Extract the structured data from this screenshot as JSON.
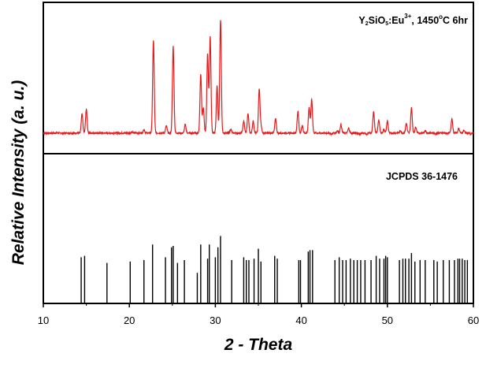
{
  "chart_data": [
    {
      "type": "line",
      "panel": "top",
      "annotation": {
        "compound": "Y",
        "sub1": "2",
        "mid1": "SiO",
        "sub2": "5",
        "mid2": ":Eu",
        "sup": "3+",
        "mid3": ", 1450",
        "deg": "o",
        "tail": "C 6hr"
      },
      "series": [
        {
          "color": "#e41a1c",
          "baseline": 0.06,
          "peaks": [
            {
              "x": 14.5,
              "y": 0.22
            },
            {
              "x": 15.0,
              "y": 0.26
            },
            {
              "x": 20.3,
              "y": 0.07
            },
            {
              "x": 21.7,
              "y": 0.09
            },
            {
              "x": 22.8,
              "y": 0.83
            },
            {
              "x": 24.3,
              "y": 0.12
            },
            {
              "x": 25.1,
              "y": 0.78
            },
            {
              "x": 26.5,
              "y": 0.13
            },
            {
              "x": 27.8,
              "y": 0.06
            },
            {
              "x": 28.3,
              "y": 0.55
            },
            {
              "x": 28.6,
              "y": 0.27
            },
            {
              "x": 29.1,
              "y": 0.72
            },
            {
              "x": 29.4,
              "y": 0.86
            },
            {
              "x": 30.2,
              "y": 0.45
            },
            {
              "x": 30.6,
              "y": 1.0
            },
            {
              "x": 31.8,
              "y": 0.09
            },
            {
              "x": 33.3,
              "y": 0.16
            },
            {
              "x": 33.8,
              "y": 0.22
            },
            {
              "x": 34.4,
              "y": 0.16
            },
            {
              "x": 35.1,
              "y": 0.42
            },
            {
              "x": 35.3,
              "y": 0.12
            },
            {
              "x": 37.0,
              "y": 0.18
            },
            {
              "x": 39.6,
              "y": 0.24
            },
            {
              "x": 40.1,
              "y": 0.12
            },
            {
              "x": 40.9,
              "y": 0.27
            },
            {
              "x": 41.2,
              "y": 0.34
            },
            {
              "x": 43.5,
              "y": 0.05
            },
            {
              "x": 44.2,
              "y": 0.08
            },
            {
              "x": 44.6,
              "y": 0.13
            },
            {
              "x": 45.5,
              "y": 0.1
            },
            {
              "x": 46.3,
              "y": 0.06
            },
            {
              "x": 46.8,
              "y": 0.05
            },
            {
              "x": 47.6,
              "y": 0.05
            },
            {
              "x": 48.4,
              "y": 0.24
            },
            {
              "x": 49.0,
              "y": 0.17
            },
            {
              "x": 49.6,
              "y": 0.09
            },
            {
              "x": 50.0,
              "y": 0.16
            },
            {
              "x": 51.5,
              "y": 0.08
            },
            {
              "x": 52.2,
              "y": 0.14
            },
            {
              "x": 52.8,
              "y": 0.27
            },
            {
              "x": 53.3,
              "y": 0.11
            },
            {
              "x": 54.4,
              "y": 0.08
            },
            {
              "x": 55.6,
              "y": 0.05
            },
            {
              "x": 56.4,
              "y": 0.06
            },
            {
              "x": 57.5,
              "y": 0.18
            },
            {
              "x": 58.3,
              "y": 0.1
            },
            {
              "x": 58.9,
              "y": 0.08
            },
            {
              "x": 59.7,
              "y": 0.05
            }
          ]
        }
      ]
    },
    {
      "type": "bar",
      "panel": "bottom",
      "annotation": "JCPDS 36-1476",
      "series": [
        {
          "color": "#000000",
          "sticks": [
            {
              "x": 14.4,
              "y": 0.32
            },
            {
              "x": 14.8,
              "y": 0.33
            },
            {
              "x": 17.4,
              "y": 0.28
            },
            {
              "x": 20.1,
              "y": 0.29
            },
            {
              "x": 21.7,
              "y": 0.3
            },
            {
              "x": 22.7,
              "y": 0.41
            },
            {
              "x": 24.2,
              "y": 0.32
            },
            {
              "x": 24.9,
              "y": 0.39
            },
            {
              "x": 25.1,
              "y": 0.4
            },
            {
              "x": 25.6,
              "y": 0.28
            },
            {
              "x": 26.4,
              "y": 0.3
            },
            {
              "x": 27.9,
              "y": 0.21
            },
            {
              "x": 28.3,
              "y": 0.41
            },
            {
              "x": 29.1,
              "y": 0.31
            },
            {
              "x": 29.3,
              "y": 0.41
            },
            {
              "x": 30.0,
              "y": 0.32
            },
            {
              "x": 30.3,
              "y": 0.39
            },
            {
              "x": 30.6,
              "y": 0.47
            },
            {
              "x": 31.9,
              "y": 0.3
            },
            {
              "x": 33.3,
              "y": 0.32
            },
            {
              "x": 33.6,
              "y": 0.3
            },
            {
              "x": 33.9,
              "y": 0.3
            },
            {
              "x": 34.5,
              "y": 0.31
            },
            {
              "x": 35.0,
              "y": 0.38
            },
            {
              "x": 35.3,
              "y": 0.29
            },
            {
              "x": 36.9,
              "y": 0.33
            },
            {
              "x": 37.2,
              "y": 0.31
            },
            {
              "x": 39.7,
              "y": 0.3
            },
            {
              "x": 39.9,
              "y": 0.3
            },
            {
              "x": 40.8,
              "y": 0.36
            },
            {
              "x": 41.0,
              "y": 0.37
            },
            {
              "x": 41.3,
              "y": 0.37
            },
            {
              "x": 43.9,
              "y": 0.3
            },
            {
              "x": 44.4,
              "y": 0.32
            },
            {
              "x": 44.8,
              "y": 0.3
            },
            {
              "x": 45.2,
              "y": 0.3
            },
            {
              "x": 45.7,
              "y": 0.31
            },
            {
              "x": 46.1,
              "y": 0.3
            },
            {
              "x": 46.5,
              "y": 0.3
            },
            {
              "x": 46.9,
              "y": 0.3
            },
            {
              "x": 47.4,
              "y": 0.3
            },
            {
              "x": 48.1,
              "y": 0.3
            },
            {
              "x": 48.7,
              "y": 0.33
            },
            {
              "x": 49.1,
              "y": 0.31
            },
            {
              "x": 49.6,
              "y": 0.31
            },
            {
              "x": 49.8,
              "y": 0.33
            },
            {
              "x": 50.0,
              "y": 0.32
            },
            {
              "x": 51.4,
              "y": 0.3
            },
            {
              "x": 51.8,
              "y": 0.31
            },
            {
              "x": 52.1,
              "y": 0.31
            },
            {
              "x": 52.5,
              "y": 0.31
            },
            {
              "x": 52.8,
              "y": 0.35
            },
            {
              "x": 53.2,
              "y": 0.29
            },
            {
              "x": 53.8,
              "y": 0.3
            },
            {
              "x": 54.4,
              "y": 0.3
            },
            {
              "x": 55.4,
              "y": 0.3
            },
            {
              "x": 55.8,
              "y": 0.29
            },
            {
              "x": 56.5,
              "y": 0.3
            },
            {
              "x": 57.2,
              "y": 0.3
            },
            {
              "x": 57.8,
              "y": 0.3
            },
            {
              "x": 58.2,
              "y": 0.31
            },
            {
              "x": 58.4,
              "y": 0.31
            },
            {
              "x": 58.7,
              "y": 0.31
            },
            {
              "x": 59.0,
              "y": 0.3
            },
            {
              "x": 59.3,
              "y": 0.3
            }
          ]
        }
      ]
    }
  ],
  "axes": {
    "xlabel": "2 - Theta",
    "ylabel": "Relative Intensity (a. u.)",
    "xlim": [
      10,
      60
    ],
    "xticks": [
      10,
      20,
      30,
      40,
      50,
      60
    ]
  }
}
